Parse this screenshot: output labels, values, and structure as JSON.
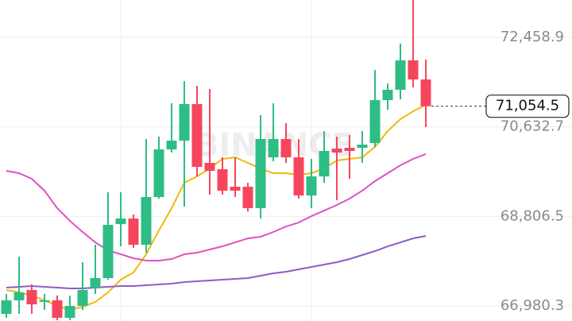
{
  "chart_data": {
    "type": "candlestick",
    "watermark": "BINANCE",
    "ylim": [
      66674.1,
      73220.5
    ],
    "yticks": [
      {
        "value": 72458.9,
        "label": "72,458.9"
      },
      {
        "value": 70632.7,
        "label": "70,632.7"
      },
      {
        "value": 68806.5,
        "label": "68,806.5"
      },
      {
        "value": 66980.3,
        "label": "66,980.3"
      }
    ],
    "grid": true,
    "up_color": "#2ebd85",
    "down_color": "#f6465d",
    "last_price": {
      "value": 71054.5,
      "label": "71,054.5"
    },
    "candles": [
      {
        "open": 66820.0,
        "high": 67225.1,
        "low": 66739.0,
        "close": 67095.4
      },
      {
        "open": 67095.4,
        "high": 67986.7,
        "low": 66820.0,
        "close": 67257.5
      },
      {
        "open": 67306.1,
        "high": 67419.5,
        "low": 66820.0,
        "close": 67014.4
      },
      {
        "open": 67063.0,
        "high": 67225.1,
        "low": 66901.0,
        "close": 67095.4
      },
      {
        "open": 67095.4,
        "high": 67192.7,
        "low": 66690.0,
        "close": 66739.0
      },
      {
        "open": 66739.0,
        "high": 67192.7,
        "low": 66690.0,
        "close": 66982.0
      },
      {
        "open": 66982.0,
        "high": 67873.2,
        "low": 66901.0,
        "close": 67306.1
      },
      {
        "open": 67354.7,
        "high": 68229.7,
        "low": 67225.1,
        "close": 67549.1
      },
      {
        "open": 67549.1,
        "high": 69299.1,
        "low": 67516.7,
        "close": 68634.8
      },
      {
        "open": 68650.0,
        "high": 69299.1,
        "low": 68197.3,
        "close": 68764.4
      },
      {
        "open": 68764.4,
        "high": 68845.5,
        "low": 68164.9,
        "close": 68229.7
      },
      {
        "open": 68229.7,
        "high": 70384.8,
        "low": 68067.7,
        "close": 69201.9
      },
      {
        "open": 69201.9,
        "high": 70433.4,
        "low": 69169.5,
        "close": 70174.1
      },
      {
        "open": 70174.1,
        "high": 71114.0,
        "low": 70109.3,
        "close": 70352.4
      },
      {
        "open": 70352.4,
        "high": 71567.7,
        "low": 69007.5,
        "close": 71097.8
      },
      {
        "open": 71097.8,
        "high": 71470.5,
        "low": 69623.2,
        "close": 69817.7
      },
      {
        "open": 69898.7,
        "high": 71405.6,
        "low": 69250.5,
        "close": 69736.6
      },
      {
        "open": 69769.0,
        "high": 70012.1,
        "low": 69250.5,
        "close": 69331.5
      },
      {
        "open": 69412.6,
        "high": 70012.1,
        "low": 69201.9,
        "close": 69331.5
      },
      {
        "open": 69412.6,
        "high": 69493.6,
        "low": 68910.3,
        "close": 68975.1
      },
      {
        "open": 68975.1,
        "high": 70870.9,
        "low": 68764.4,
        "close": 70384.8
      },
      {
        "open": 70012.1,
        "high": 71114.0,
        "low": 69931.1,
        "close": 70384.8
      },
      {
        "open": 70384.8,
        "high": 70708.8,
        "low": 69898.7,
        "close": 70012.1
      },
      {
        "open": 70012.1,
        "high": 70384.8,
        "low": 69169.5,
        "close": 69234.3
      },
      {
        "open": 69234.3,
        "high": 69979.7,
        "low": 68975.1,
        "close": 69623.2
      },
      {
        "open": 69623.2,
        "high": 70546.8,
        "low": 69493.6,
        "close": 70141.7
      },
      {
        "open": 70190.3,
        "high": 70433.4,
        "low": 69137.1,
        "close": 70109.3
      },
      {
        "open": 70206.5,
        "high": 70465.8,
        "low": 69574.6,
        "close": 70141.7
      },
      {
        "open": 70206.5,
        "high": 70546.8,
        "low": 69898.7,
        "close": 70271.4
      },
      {
        "open": 70303.8,
        "high": 71794.6,
        "low": 70222.7,
        "close": 71178.8
      },
      {
        "open": 71178.8,
        "high": 71519.1,
        "low": 70984.3,
        "close": 71389.4
      },
      {
        "open": 71389.4,
        "high": 72329.3,
        "low": 71195.0,
        "close": 71989.0
      },
      {
        "open": 71989.0,
        "high": 73220.5,
        "low": 71438.1,
        "close": 71600.1
      },
      {
        "open": 71600.1,
        "high": 72005.2,
        "low": 70627.8,
        "close": 71054.5
      }
    ],
    "series": [
      {
        "color": "#f0b90b",
        "values": [
          67306,
          67257,
          67193,
          67095,
          66982,
          66901,
          66966,
          67063,
          67257,
          67517,
          67663,
          68035,
          68521,
          68975,
          69494,
          69623,
          69785,
          69980,
          70012,
          69899,
          69785,
          69688,
          69688,
          69656,
          69688,
          69785,
          69947,
          69980,
          70012,
          70223,
          70547,
          70790,
          70952,
          71081
        ]
      },
      {
        "color": "#e052c0",
        "values": [
          69737,
          69688,
          69575,
          69332,
          68975,
          68716,
          68489,
          68278,
          68116,
          68035,
          67954,
          67906,
          67906,
          67938,
          68035,
          68068,
          68132,
          68197,
          68278,
          68359,
          68392,
          68489,
          68602,
          68683,
          68813,
          68926,
          69040,
          69170,
          69332,
          69526,
          69688,
          69850,
          69980,
          70077
        ]
      },
      {
        "color": "#8e5cc4",
        "values": [
          67355,
          67371,
          67387,
          67371,
          67355,
          67339,
          67339,
          67355,
          67371,
          67387,
          67387,
          67403,
          67420,
          67436,
          67468,
          67484,
          67501,
          67517,
          67533,
          67549,
          67598,
          67646,
          67679,
          67727,
          67776,
          67825,
          67873,
          67938,
          68019,
          68100,
          68197,
          68278,
          68359,
          68408
        ]
      }
    ]
  }
}
